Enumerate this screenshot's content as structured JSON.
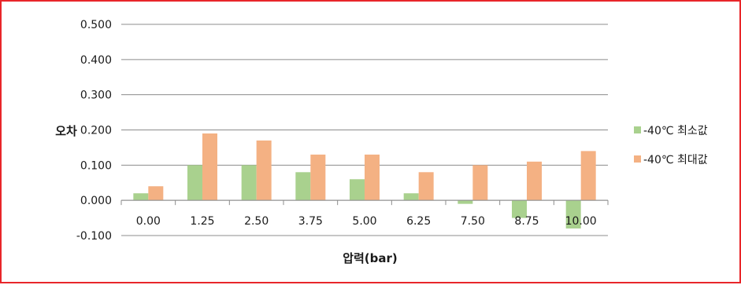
{
  "chart_data": {
    "type": "bar",
    "title": "",
    "xlabel": "압력(bar)",
    "ylabel": "오차",
    "categories": [
      "0.00",
      "1.25",
      "2.50",
      "3.75",
      "5.00",
      "6.25",
      "7.50",
      "8.75",
      "10.00"
    ],
    "series": [
      {
        "name": "-40℃ 최소값",
        "color": "#a9d18e",
        "values": [
          0.02,
          0.1,
          0.1,
          0.08,
          0.06,
          0.02,
          -0.01,
          -0.05,
          -0.08
        ]
      },
      {
        "name": "-40℃ 최대값",
        "color": "#f4b183",
        "values": [
          0.04,
          0.19,
          0.17,
          0.13,
          0.13,
          0.08,
          0.1,
          0.11,
          0.14
        ]
      }
    ],
    "ylim": [
      -0.1,
      0.5
    ],
    "yticks": [
      "-0.100",
      "0.000",
      "0.100",
      "0.200",
      "0.300",
      "0.400",
      "0.500"
    ],
    "grid": true,
    "legend_position": "right",
    "border_color": "#e8262a",
    "grid_color": "#8c8c8c"
  }
}
